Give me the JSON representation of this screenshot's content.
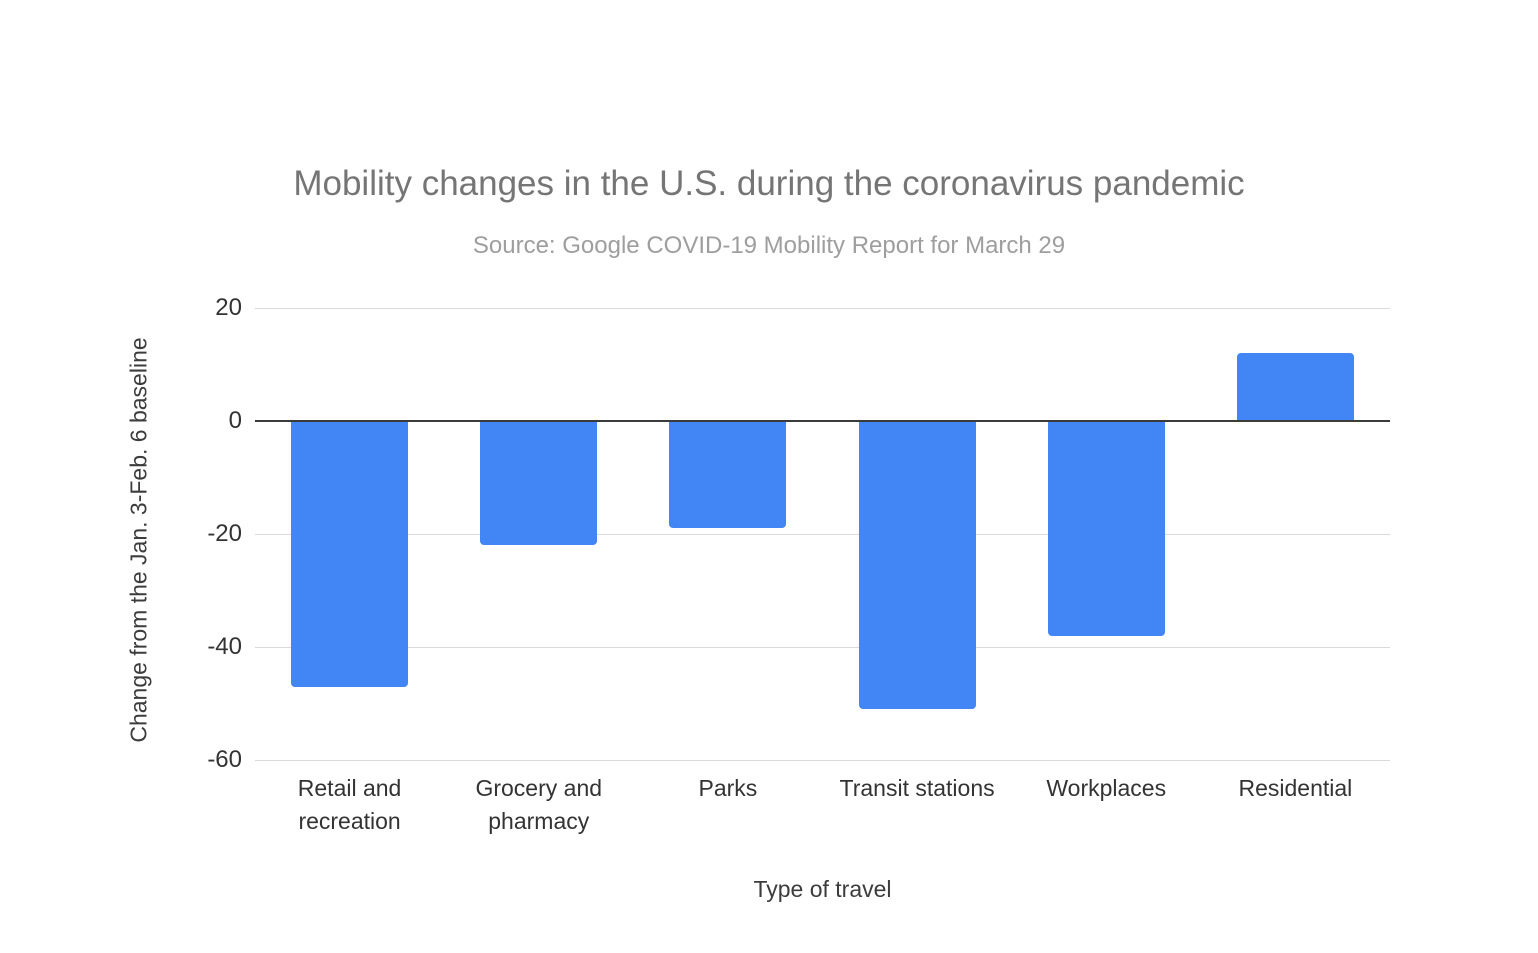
{
  "chart_data": {
    "type": "bar",
    "title": "Mobility changes in the U.S. during the coronavirus pandemic",
    "subtitle": "Source: Google COVID-19 Mobility Report for March 29",
    "xlabel": "Type of travel",
    "ylabel": "Change from the Jan. 3-Feb. 6 baseline",
    "categories": [
      "Retail and recreation",
      "Grocery and pharmacy",
      "Parks",
      "Transit stations",
      "Workplaces",
      "Residential"
    ],
    "values": [
      -47,
      -22,
      -19,
      -51,
      -38,
      12
    ],
    "ylim": [
      -60,
      20
    ],
    "yticks": [
      20,
      0,
      -20,
      -40,
      -60
    ],
    "grid": true,
    "legend": false,
    "colors": {
      "bar": "#4285F4",
      "gridline": "#dadada",
      "zero_line": "#3b3b3b",
      "title": "#757575",
      "subtitle": "#9e9e9e",
      "tick_label": "#333333",
      "axis_title": "#3c3c3c"
    }
  }
}
